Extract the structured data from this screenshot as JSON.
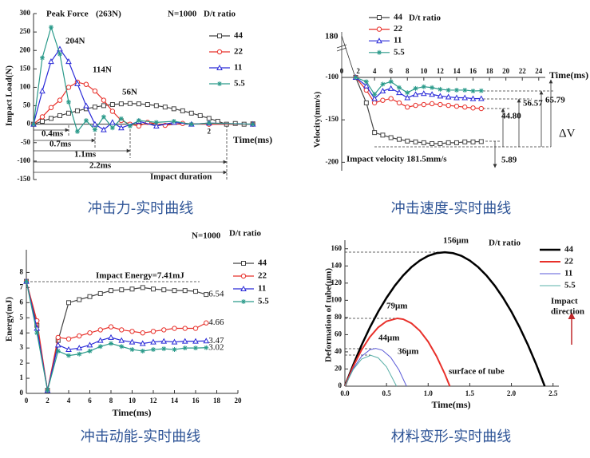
{
  "chart_data": [
    {
      "type": "line",
      "caption": "冲击力-实时曲线",
      "xlabel": "Time(ms)",
      "ylabel": "Impact Load(N)",
      "xlim": [
        0,
        2.53
      ],
      "ylim": [
        -150,
        300
      ],
      "xticks": [
        2
      ],
      "yticks": [
        -150,
        -100,
        -50,
        0,
        50,
        100,
        150,
        200,
        250,
        300
      ],
      "series": [
        {
          "name": "44",
          "color": "#444444",
          "marker": "square",
          "x": [
            0,
            0.1,
            0.2,
            0.3,
            0.4,
            0.5,
            0.6,
            0.7,
            0.8,
            0.9,
            1.0,
            1.1,
            1.2,
            1.3,
            1.4,
            1.5,
            1.6,
            1.7,
            1.8,
            1.9,
            2.0,
            2.1,
            2.2,
            2.3,
            2.4,
            2.5
          ],
          "values": [
            0,
            8,
            15.8,
            23.2,
            30,
            36.3,
            41.8,
            46.5,
            50.4,
            53.3,
            55.2,
            56,
            55.2,
            53.3,
            50.4,
            46.5,
            41.8,
            36.3,
            30,
            23.2,
            15.8,
            8,
            0,
            2,
            0,
            1
          ]
        },
        {
          "name": "22",
          "color": "#e8302a",
          "marker": "circle",
          "x": [
            0,
            0.1,
            0.2,
            0.3,
            0.4,
            0.5,
            0.6,
            0.7,
            0.8,
            0.9,
            1.0,
            1.1,
            1.2,
            1.3,
            1.5,
            1.7,
            2.0,
            2.5
          ],
          "values": [
            0,
            20,
            45,
            65,
            100,
            114,
            108,
            90,
            65,
            35,
            10,
            0,
            -5,
            5,
            -3,
            2,
            0,
            0
          ]
        },
        {
          "name": "11",
          "color": "#2a2ad8",
          "marker": "triangle",
          "x": [
            0,
            0.1,
            0.2,
            0.3,
            0.4,
            0.5,
            0.6,
            0.7,
            0.8,
            0.9,
            1.0,
            1.2,
            1.4,
            1.6,
            1.8,
            2.0,
            2.5
          ],
          "values": [
            0,
            90,
            170,
            204,
            170,
            110,
            50,
            0,
            -15,
            5,
            -10,
            8,
            -5,
            5,
            0,
            3,
            0
          ]
        },
        {
          "name": "5.5",
          "color": "#2a9a8a",
          "marker": "star",
          "x": [
            0,
            0.1,
            0.2,
            0.3,
            0.4,
            0.5,
            0.6,
            0.7,
            0.8,
            0.9,
            1.0,
            1.1,
            1.2,
            1.4,
            1.6,
            1.8,
            2.0,
            2.5
          ],
          "values": [
            0,
            180,
            263,
            190,
            60,
            -20,
            10,
            -15,
            20,
            -10,
            15,
            -5,
            10,
            5,
            8,
            0,
            3,
            0
          ]
        }
      ],
      "annotations": [
        {
          "text": "Peak Force",
          "color": "#111111"
        },
        {
          "text": "(263N)",
          "color": "#2a9a2a"
        },
        {
          "text": "N=1000",
          "color": "#111111"
        },
        {
          "text": "D/t ratio",
          "color": "#111111"
        },
        {
          "text": "204N",
          "color": "#2a2ad8"
        },
        {
          "text": "114N",
          "color": "#e8302a"
        },
        {
          "text": "56N",
          "color": "#111111"
        },
        {
          "text": "0.4ms",
          "color": "#2a9a2a"
        },
        {
          "text": "0.7ms",
          "color": "#2a2ad8"
        },
        {
          "text": "1.1ms",
          "color": "#e8302a"
        },
        {
          "text": "2.2ms",
          "color": "#111111"
        },
        {
          "text": "Impact duration",
          "color": "#111111"
        }
      ]
    },
    {
      "type": "line",
      "caption": "冲击速度-实时曲线",
      "xlabel": "Time(ms)",
      "ylabel": "Velocity(mm/s)",
      "xlim": [
        0,
        24.8
      ],
      "ylim": [
        -210,
        -100
      ],
      "xticks": [
        0,
        2,
        4,
        6,
        8,
        10,
        12,
        14,
        16,
        18,
        20,
        22,
        24
      ],
      "yticks": [
        -100,
        -150,
        -200
      ],
      "series": [
        {
          "name": "44",
          "color": "#444444",
          "marker": "square",
          "x": [
            1.7,
            3,
            4,
            5,
            6,
            7,
            8,
            9,
            10,
            11,
            12,
            13,
            14,
            15,
            16,
            17
          ],
          "values": [
            -100,
            -130,
            -165,
            -168,
            -171,
            -173,
            -175,
            -176,
            -177,
            -178,
            -178,
            -177,
            -177,
            -176,
            -176,
            -175.6
          ]
        },
        {
          "name": "22",
          "color": "#e8302a",
          "marker": "circle",
          "x": [
            1.7,
            3,
            4,
            5,
            6,
            7,
            8,
            9,
            10,
            11,
            12,
            13,
            14,
            15,
            16,
            17
          ],
          "values": [
            -100,
            -115,
            -130,
            -127,
            -125,
            -130,
            -135,
            -133,
            -132,
            -131,
            -132,
            -133,
            -134,
            -135,
            -136,
            -136.7
          ]
        },
        {
          "name": "11",
          "color": "#2a2ad8",
          "marker": "triangle",
          "x": [
            1.7,
            3,
            4,
            5,
            6,
            7,
            8,
            9,
            10,
            11,
            12,
            13,
            14,
            15,
            16,
            17
          ],
          "values": [
            -100,
            -110,
            -125,
            -116,
            -113,
            -118,
            -124,
            -120,
            -119,
            -120,
            -122,
            -123,
            -124,
            -124,
            -125,
            -124.9
          ]
        },
        {
          "name": "5.5",
          "color": "#2a9a8a",
          "marker": "star",
          "x": [
            1.7,
            3,
            4,
            5,
            6,
            7,
            8,
            9,
            10,
            11,
            12,
            13,
            14,
            15,
            16,
            17
          ],
          "values": [
            -100,
            -105,
            -120,
            -108,
            -105,
            -112,
            -118,
            -113,
            -111,
            -112,
            -114,
            -115,
            -115,
            -115,
            -116,
            -115.7
          ]
        }
      ],
      "annotations": [
        {
          "text": "D/t ratio",
          "color": "#111111"
        },
        {
          "text": "180",
          "color": "#111111"
        },
        {
          "text": "Impact velocity 181.5mm/s",
          "color": "#111111"
        },
        {
          "text": "5.89",
          "color": "#111111"
        },
        {
          "text": "44.80",
          "color": "#111111"
        },
        {
          "text": "56.57",
          "color": "#111111"
        },
        {
          "text": "65.79",
          "color": "#111111"
        },
        {
          "text": "ΔV",
          "color": "#111111"
        }
      ]
    },
    {
      "type": "line",
      "caption": "冲击动能-实时曲线",
      "xlabel": "Time(ms)",
      "ylabel": "Energy(mJ)",
      "end_labels": true,
      "xlim": [
        0,
        20
      ],
      "ylim": [
        0,
        9.5
      ],
      "xticks": [
        0,
        2,
        4,
        6,
        8,
        10,
        12,
        14,
        16,
        18,
        20
      ],
      "yticks": [
        0,
        1,
        2,
        3,
        4,
        5,
        6,
        7,
        8
      ],
      "series": [
        {
          "name": "44",
          "color": "#444444",
          "marker": "square",
          "x": [
            0,
            1,
            2,
            3,
            4,
            5,
            6,
            7,
            8,
            9,
            10,
            11,
            12,
            13,
            14,
            15,
            16,
            17
          ],
          "values": [
            7.41,
            4.5,
            0.2,
            3.5,
            6.0,
            6.2,
            6.4,
            6.6,
            6.8,
            6.85,
            6.9,
            7.0,
            6.9,
            6.85,
            6.8,
            6.8,
            6.75,
            6.54
          ]
        },
        {
          "name": "22",
          "color": "#e8302a",
          "marker": "circle",
          "x": [
            0,
            1,
            2,
            3,
            4,
            5,
            6,
            7,
            8,
            9,
            10,
            11,
            12,
            13,
            14,
            15,
            16,
            17
          ],
          "values": [
            7.41,
            4.8,
            0.2,
            3.7,
            3.6,
            3.8,
            4.0,
            4.2,
            4.4,
            4.2,
            4.1,
            4.0,
            4.1,
            4.2,
            4.3,
            4.3,
            4.3,
            4.66
          ]
        },
        {
          "name": "11",
          "color": "#2a2ad8",
          "marker": "triangle",
          "x": [
            0,
            1,
            2,
            3,
            4,
            5,
            6,
            7,
            8,
            9,
            10,
            11,
            12,
            13,
            14,
            15,
            16,
            17
          ],
          "values": [
            7.41,
            4.3,
            0.2,
            3.2,
            2.9,
            3.0,
            3.2,
            3.5,
            3.7,
            3.5,
            3.4,
            3.3,
            3.4,
            3.45,
            3.4,
            3.45,
            3.45,
            3.47
          ]
        },
        {
          "name": "5.5",
          "color": "#2a9a8a",
          "marker": "star",
          "x": [
            0,
            1,
            2,
            3,
            4,
            5,
            6,
            7,
            8,
            9,
            10,
            11,
            12,
            13,
            14,
            15,
            16,
            17
          ],
          "values": [
            7.41,
            4.0,
            0.2,
            2.8,
            2.5,
            2.6,
            2.8,
            3.1,
            3.3,
            3.1,
            2.9,
            2.8,
            2.9,
            2.95,
            2.9,
            3.0,
            3.0,
            3.02
          ]
        }
      ],
      "annotations": [
        {
          "text": "N=1000",
          "color": "#111111"
        },
        {
          "text": "D/t ratio",
          "color": "#111111"
        },
        {
          "text": "Impact Energy=7.41mJ",
          "color": "#111111"
        }
      ]
    },
    {
      "type": "line",
      "caption": "材料变形-实时曲线",
      "xlabel": "Time(ms)",
      "ylabel": "Deformation of tube(μm)",
      "xlim": [
        0,
        2.57
      ],
      "ylim": [
        0,
        170
      ],
      "xticks": [
        {
          "value": 0,
          "label": "0.0"
        },
        0.5,
        {
          "value": 1,
          "label": "1.0"
        },
        1.5,
        {
          "value": 2,
          "label": "2.0"
        },
        2.5
      ],
      "yticks": [
        0,
        20,
        40,
        60,
        80,
        100,
        120,
        140,
        160
      ],
      "series": [
        {
          "name": "44",
          "color": "#000000",
          "width": 2.5,
          "x": [
            0,
            0.1,
            0.2,
            0.3,
            0.4,
            0.5,
            0.6,
            0.7,
            0.8,
            0.9,
            1.0,
            1.1,
            1.2,
            1.3,
            1.4,
            1.5,
            1.6,
            1.7,
            1.8,
            1.9,
            2.0,
            2.1,
            2.2,
            2.3,
            2.4
          ],
          "values": [
            0,
            24.9,
            47.7,
            68.3,
            86.7,
            102.9,
            117,
            128.9,
            138.7,
            146.3,
            151.7,
            154.9,
            156,
            154.9,
            151.7,
            146.3,
            138.7,
            128.9,
            117,
            102.9,
            86.7,
            68.3,
            47.7,
            24.9,
            0
          ]
        },
        {
          "name": "22",
          "color": "#e8302a",
          "width": 2,
          "x": [
            0,
            0.1,
            0.2,
            0.3,
            0.4,
            0.5,
            0.63,
            0.7,
            0.8,
            0.9,
            1.0,
            1.1,
            1.2,
            1.26
          ],
          "values": [
            0,
            23.1,
            42.2,
            57.3,
            68.5,
            75.6,
            79,
            78.0,
            73.2,
            64.5,
            51.8,
            35.0,
            14.3,
            0
          ]
        },
        {
          "name": "11",
          "color": "#5a5ad8",
          "width": 1,
          "x": [
            0,
            0.1,
            0.2,
            0.3,
            0.37,
            0.45,
            0.55,
            0.65,
            0.74
          ],
          "values": [
            0,
            20.6,
            34.7,
            42.4,
            44,
            41.9,
            33.6,
            18.8,
            0
          ]
        },
        {
          "name": "5.5",
          "color": "#5ab0a8",
          "width": 1,
          "x": [
            0,
            0.1,
            0.2,
            0.31,
            0.4,
            0.5,
            0.62
          ],
          "values": [
            0,
            19.5,
            31.5,
            36,
            33.0,
            22.5,
            0
          ]
        }
      ],
      "annotations": [
        {
          "text": "D/t ratio",
          "color": "#111111"
        },
        {
          "text": "156μm",
          "color": "#111111"
        },
        {
          "text": "79μm",
          "color": "#e8302a"
        },
        {
          "text": "44μm",
          "color": "#2a2ad8"
        },
        {
          "text": "36μm",
          "color": "#2a9a2a"
        },
        {
          "text": "surface of tube",
          "color": "#8a2a9a"
        },
        {
          "text": "Impact",
          "color": "#c0282a"
        },
        {
          "text": "direction",
          "color": "#c0282a"
        }
      ]
    }
  ]
}
